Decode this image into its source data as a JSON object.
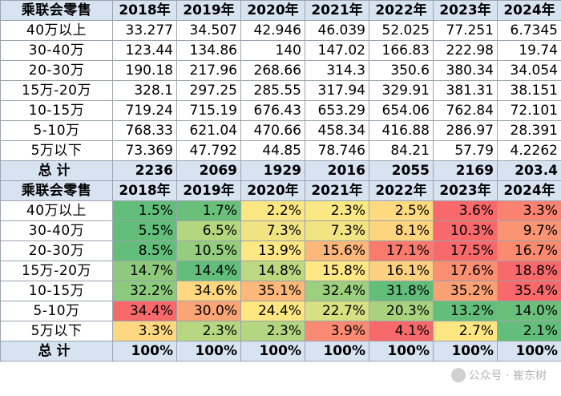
{
  "years": [
    "2018年",
    "2019年",
    "2020年",
    "2021年",
    "2022年",
    "2023年",
    "2024年"
  ],
  "corner_label": "乘联会零售",
  "total_label": "总计",
  "table1": {
    "rows": [
      {
        "label": "40万以上",
        "values": [
          "33.277",
          "34.507",
          "42.946",
          "46.039",
          "52.025",
          "77.251",
          "6.7345"
        ]
      },
      {
        "label": "30-40万",
        "values": [
          "123.44",
          "134.86",
          "140",
          "147.02",
          "166.83",
          "222.98",
          "19.74"
        ]
      },
      {
        "label": "20-30万",
        "values": [
          "190.18",
          "217.96",
          "268.66",
          "314.3",
          "350.6",
          "380.34",
          "34.054"
        ]
      },
      {
        "label": "15万-20万",
        "values": [
          "328.1",
          "297.25",
          "285.55",
          "317.94",
          "329.91",
          "381.31",
          "38.151"
        ]
      },
      {
        "label": "10-15万",
        "values": [
          "719.24",
          "715.19",
          "676.43",
          "653.29",
          "654.06",
          "762.84",
          "72.101"
        ]
      },
      {
        "label": "5-10万",
        "values": [
          "768.33",
          "621.04",
          "470.66",
          "458.34",
          "416.88",
          "286.97",
          "28.391"
        ]
      },
      {
        "label": "5万以下",
        "values": [
          "73.369",
          "47.792",
          "44.85",
          "78.746",
          "84.21",
          "57.79",
          "4.2262"
        ]
      }
    ],
    "total": [
      "2236",
      "2069",
      "1929",
      "2016",
      "2055",
      "2169",
      "203.4"
    ]
  },
  "table2": {
    "rows": [
      {
        "label": "40万以上",
        "values": [
          "1.5%",
          "1.7%",
          "2.2%",
          "2.3%",
          "2.5%",
          "3.6%",
          "3.3%"
        ],
        "colors": [
          "#63be7b",
          "#6ac07b",
          "#fae683",
          "#f9e883",
          "#fed980",
          "#f8696b",
          "#f98370"
        ]
      },
      {
        "label": "30-40万",
        "values": [
          "5.5%",
          "6.5%",
          "7.3%",
          "7.3%",
          "8.1%",
          "10.3%",
          "9.7%"
        ],
        "colors": [
          "#63be7b",
          "#b4d67f",
          "#f1e383",
          "#f2e383",
          "#fed47f",
          "#f8696b",
          "#fa9573"
        ]
      },
      {
        "label": "20-30万",
        "values": [
          "8.5%",
          "10.5%",
          "13.9%",
          "15.6%",
          "17.1%",
          "17.5%",
          "16.7%"
        ],
        "colors": [
          "#63be7b",
          "#94cd7e",
          "#ffe784",
          "#fcb77a",
          "#f97a6e",
          "#f8696b",
          "#fa8b71"
        ]
      },
      {
        "label": "15万-20万",
        "values": [
          "14.7%",
          "14.4%",
          "14.8%",
          "15.8%",
          "16.1%",
          "17.6%",
          "18.8%"
        ],
        "colors": [
          "#8ec97d",
          "#63be7b",
          "#bcd880",
          "#ffe784",
          "#fdd17f",
          "#fa8f72",
          "#f8696b"
        ]
      },
      {
        "label": "10-15万",
        "values": [
          "32.2%",
          "34.6%",
          "35.1%",
          "32.4%",
          "31.8%",
          "35.2%",
          "35.4%"
        ],
        "colors": [
          "#8ccb7e",
          "#fed780",
          "#fcb77a",
          "#9ccf7e",
          "#63be7b",
          "#f9a075",
          "#f8696b"
        ]
      },
      {
        "label": "5-10万",
        "values": [
          "34.4%",
          "30.0%",
          "24.4%",
          "22.7%",
          "20.3%",
          "13.2%",
          "14.0%"
        ],
        "colors": [
          "#f8696b",
          "#fba576",
          "#fee783",
          "#d7e082",
          "#a9d27f",
          "#63be7b",
          "#6ac07b"
        ]
      },
      {
        "label": "5万以下",
        "values": [
          "3.3%",
          "2.3%",
          "2.3%",
          "3.9%",
          "4.1%",
          "2.7%",
          "2.1%"
        ],
        "colors": [
          "#fed880",
          "#b6d780",
          "#b5d680",
          "#fa8a71",
          "#f8696b",
          "#fee683",
          "#63be7b"
        ]
      }
    ],
    "total": [
      "100%",
      "100%",
      "100%",
      "100%",
      "100%",
      "100%",
      "100%"
    ]
  },
  "watermark": "公众号 · 崔东树"
}
